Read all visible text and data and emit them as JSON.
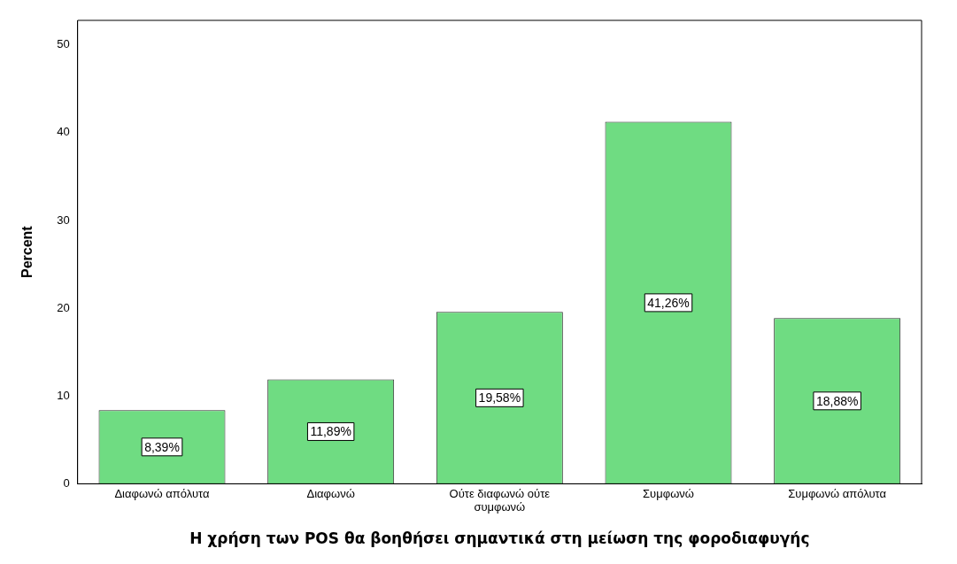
{
  "chart_data": {
    "type": "bar",
    "xlabel": "Η χρήση των POS θα βοηθήσει σημαντικά στη μείωση της φοροδιαφυγής",
    "ylabel": "Percent",
    "categories": [
      "Διαφωνώ απόλυτα",
      "Διαφωνώ",
      "Ούτε διαφωνώ ούτε συμφωνώ",
      "Συμφωνώ",
      "Συμφωνώ απόλυτα"
    ],
    "values": [
      8.39,
      11.89,
      19.58,
      41.26,
      18.88
    ],
    "value_labels": [
      "8,39%",
      "11,89%",
      "19,58%",
      "41,26%",
      "18,88%"
    ],
    "color": "#6fdc82",
    "ylim": [
      0,
      52.8
    ],
    "yticks": [
      0,
      10,
      20,
      30,
      40,
      50
    ],
    "grid": false,
    "legend": false
  }
}
